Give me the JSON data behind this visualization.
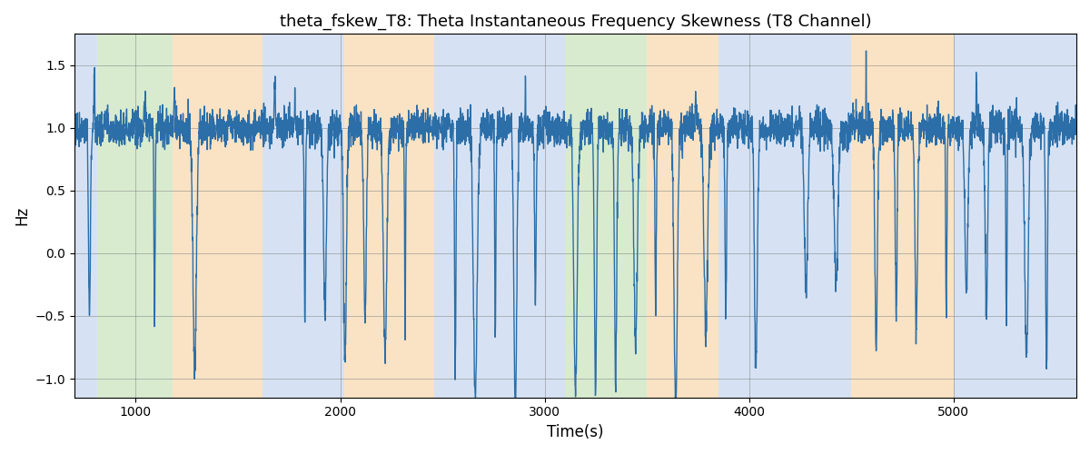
{
  "title": "theta_fskew_T8: Theta Instantaneous Frequency Skewness (T8 Channel)",
  "xlabel": "Time(s)",
  "ylabel": "Hz",
  "xlim": [
    700,
    5600
  ],
  "ylim": [
    -1.15,
    1.75
  ],
  "line_color": "#2b6ea8",
  "line_width": 1.0,
  "background_regions": [
    {
      "xstart": 700,
      "xend": 810,
      "color": "#aec6e8",
      "alpha": 0.5
    },
    {
      "xstart": 810,
      "xend": 1180,
      "color": "#b2d9a0",
      "alpha": 0.5
    },
    {
      "xstart": 1180,
      "xend": 1620,
      "color": "#f5c98a",
      "alpha": 0.5
    },
    {
      "xstart": 1620,
      "xend": 2020,
      "color": "#aec6e8",
      "alpha": 0.5
    },
    {
      "xstart": 2020,
      "xend": 2460,
      "color": "#f5c98a",
      "alpha": 0.5
    },
    {
      "xstart": 2460,
      "xend": 3100,
      "color": "#aec6e8",
      "alpha": 0.5
    },
    {
      "xstart": 3100,
      "xend": 3500,
      "color": "#b2d9a0",
      "alpha": 0.5
    },
    {
      "xstart": 3500,
      "xend": 3850,
      "color": "#f5c98a",
      "alpha": 0.5
    },
    {
      "xstart": 3850,
      "xend": 4500,
      "color": "#aec6e8",
      "alpha": 0.5
    },
    {
      "xstart": 4500,
      "xend": 5000,
      "color": "#f5c98a",
      "alpha": 0.5
    },
    {
      "xstart": 5000,
      "xend": 5600,
      "color": "#aec6e8",
      "alpha": 0.5
    }
  ],
  "grid": true,
  "title_fontsize": 13,
  "label_fontsize": 12,
  "xticks": [
    1000,
    2000,
    3000,
    4000,
    5000
  ],
  "yticks": [
    -1.0,
    -0.5,
    0.0,
    0.5,
    1.0,
    1.5
  ]
}
